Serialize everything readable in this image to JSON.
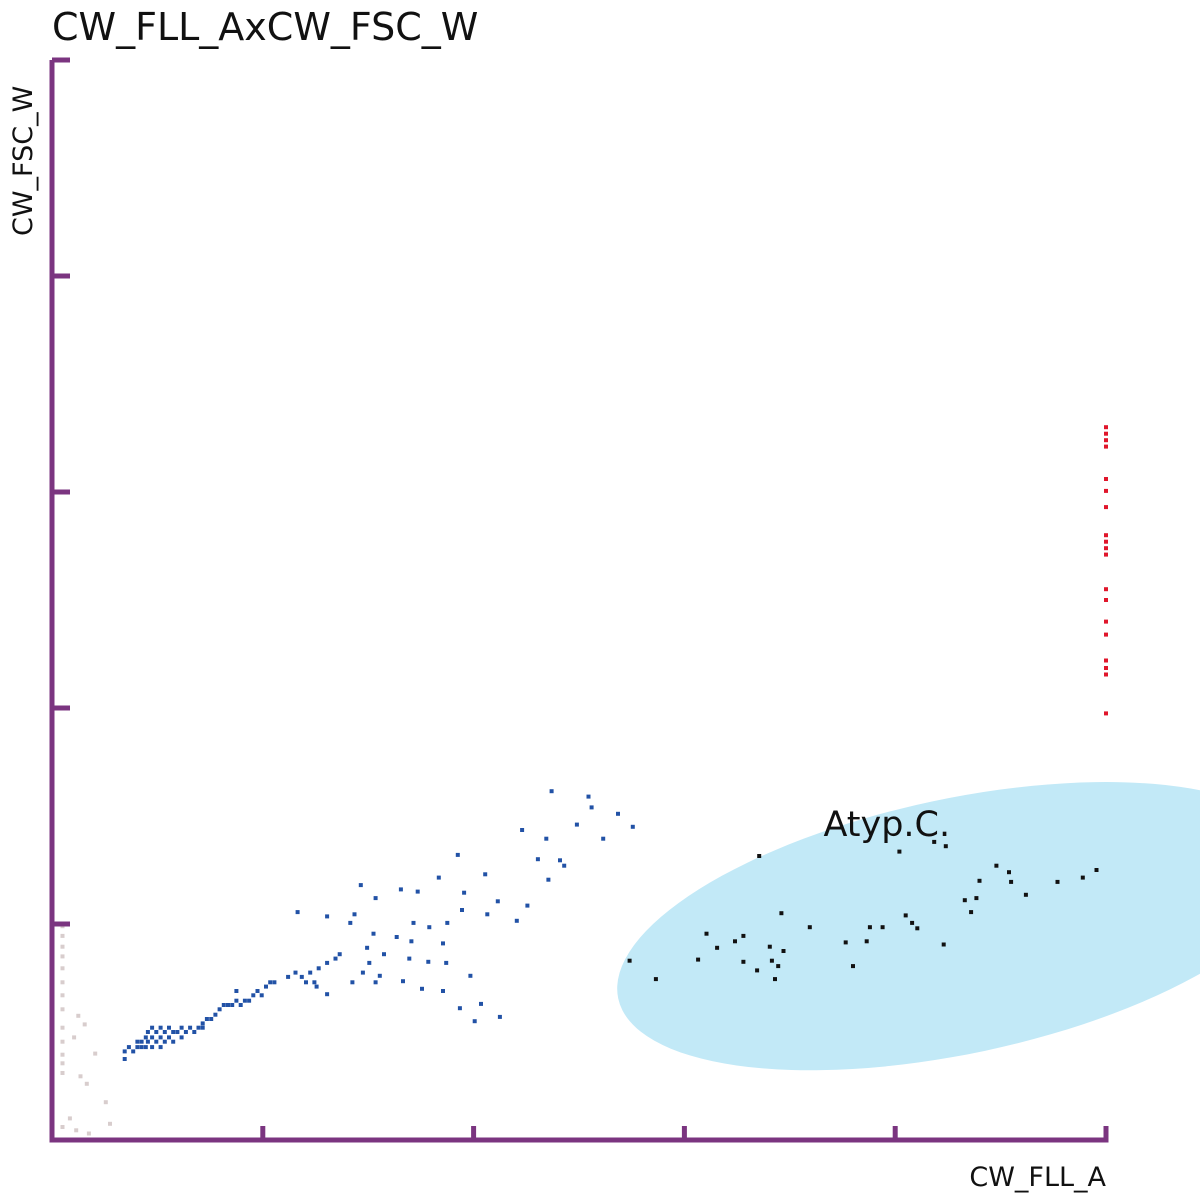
{
  "chart_data": {
    "type": "scatter",
    "title": "CW_FLL_AxCW_FSC_W",
    "xlabel": "CW_FLL_A",
    "ylabel": "CW_FSC_W",
    "xlim": [
      0,
      100
    ],
    "ylim": [
      0,
      100
    ],
    "tick_labels": "none",
    "grid": false,
    "axis_color": "#7b3580",
    "gate": {
      "label": "Atyp.C.",
      "shape": "ellipse",
      "fill": "#c2e9f7",
      "center": [
        86,
        19.8
      ],
      "radius_x": 33,
      "radius_y": 11.8,
      "rotation_deg": -12
    },
    "series": [
      {
        "color": "#2252a6",
        "points": [
          [
            6.9,
            7.5
          ],
          [
            6.9,
            8.2
          ],
          [
            7.3,
            8.6
          ],
          [
            7.7,
            8.2
          ],
          [
            8.1,
            9.1
          ],
          [
            8.1,
            8.6
          ],
          [
            8.5,
            9.1
          ],
          [
            8.5,
            8.6
          ],
          [
            8.9,
            9.5
          ],
          [
            8.9,
            8.6
          ],
          [
            9.1,
            10.0
          ],
          [
            9.1,
            9.1
          ],
          [
            9.5,
            10.4
          ],
          [
            9.5,
            9.5
          ],
          [
            9.5,
            8.6
          ],
          [
            9.9,
            10.0
          ],
          [
            9.9,
            9.1
          ],
          [
            10.3,
            10.4
          ],
          [
            10.3,
            9.5
          ],
          [
            10.3,
            8.6
          ],
          [
            10.7,
            10.0
          ],
          [
            10.7,
            9.1
          ],
          [
            11.1,
            10.4
          ],
          [
            11.1,
            9.5
          ],
          [
            11.5,
            10.0
          ],
          [
            11.5,
            9.1
          ],
          [
            11.9,
            10.0
          ],
          [
            12.3,
            10.4
          ],
          [
            12.3,
            9.5
          ],
          [
            12.7,
            10.0
          ],
          [
            13.1,
            10.4
          ],
          [
            13.5,
            10.0
          ],
          [
            13.9,
            10.4
          ],
          [
            14.3,
            10.8
          ],
          [
            14.7,
            11.2
          ],
          [
            14.3,
            10.4
          ],
          [
            15.1,
            11.2
          ],
          [
            15.5,
            11.6
          ],
          [
            15.9,
            12.1
          ],
          [
            16.3,
            12.5
          ],
          [
            16.7,
            12.5
          ],
          [
            17.1,
            12.5
          ],
          [
            17.5,
            12.9
          ],
          [
            17.9,
            12.5
          ],
          [
            18.3,
            12.9
          ],
          [
            18.7,
            12.9
          ],
          [
            17.5,
            13.8
          ],
          [
            19.1,
            13.4
          ],
          [
            19.5,
            13.8
          ],
          [
            19.9,
            13.4
          ],
          [
            20.3,
            14.2
          ],
          [
            20.7,
            14.6
          ],
          [
            21.1,
            14.6
          ],
          [
            22.4,
            15.1
          ],
          [
            23.1,
            15.5
          ],
          [
            23.7,
            15.1
          ],
          [
            24.1,
            14.6
          ],
          [
            24.5,
            15.5
          ],
          [
            24.9,
            14.6
          ],
          [
            25.3,
            15.9
          ],
          [
            26.1,
            16.4
          ],
          [
            26.9,
            16.8
          ],
          [
            27.3,
            17.2
          ],
          [
            23.3,
            21.1
          ],
          [
            25.1,
            14.2
          ],
          [
            26.1,
            13.5
          ],
          [
            28.5,
            14.6
          ],
          [
            29.5,
            15.5
          ],
          [
            30.1,
            16.4
          ],
          [
            30.7,
            14.6
          ],
          [
            28.7,
            20.9
          ],
          [
            29.3,
            23.6
          ],
          [
            33.1,
            23.2
          ],
          [
            34.3,
            20.1
          ],
          [
            34.7,
            23.0
          ],
          [
            30.5,
            19.1
          ],
          [
            37.1,
            18.2
          ],
          [
            39.1,
            22.9
          ],
          [
            42.3,
            22.1
          ],
          [
            45.1,
            21.7
          ],
          [
            38.9,
            21.3
          ],
          [
            44.1,
            20.3
          ],
          [
            37.5,
            20.1
          ],
          [
            41.3,
            20.9
          ],
          [
            32.7,
            18.8
          ],
          [
            34.1,
            18.4
          ],
          [
            28.3,
            20.1
          ],
          [
            30.7,
            22.4
          ],
          [
            26.1,
            20.7
          ],
          [
            29.9,
            17.8
          ],
          [
            31.5,
            17.2
          ],
          [
            33.9,
            16.8
          ],
          [
            35.7,
            16.5
          ],
          [
            31.1,
            15.2
          ],
          [
            33.3,
            14.7
          ],
          [
            35.1,
            14.0
          ],
          [
            39.7,
            15.2
          ],
          [
            37.1,
            13.8
          ],
          [
            40.7,
            12.6
          ],
          [
            42.5,
            11.4
          ],
          [
            38.7,
            12.2
          ],
          [
            40.1,
            11.0
          ],
          [
            47.1,
            24.1
          ],
          [
            48.6,
            25.4
          ],
          [
            52.3,
            27.9
          ],
          [
            46.1,
            26.0
          ],
          [
            46.9,
            27.9
          ],
          [
            48.2,
            25.9
          ],
          [
            49.8,
            29.2
          ],
          [
            51.2,
            30.8
          ],
          [
            53.7,
            30.2
          ],
          [
            55.1,
            29.0
          ],
          [
            50.9,
            31.8
          ],
          [
            44.6,
            28.7
          ],
          [
            47.4,
            32.3
          ],
          [
            41.1,
            24.6
          ],
          [
            38.5,
            26.4
          ],
          [
            36.7,
            24.3
          ],
          [
            35.8,
            19.7
          ],
          [
            37.4,
            16.4
          ]
        ]
      },
      {
        "color": "#111111",
        "points": [
          [
            54.8,
            16.6
          ],
          [
            57.3,
            14.9
          ],
          [
            61.3,
            16.7
          ],
          [
            62.1,
            19.1
          ],
          [
            63.1,
            17.8
          ],
          [
            64.8,
            18.4
          ],
          [
            65.6,
            18.9
          ],
          [
            65.6,
            16.5
          ],
          [
            66.9,
            15.7
          ],
          [
            68.1,
            17.9
          ],
          [
            68.3,
            16.6
          ],
          [
            68.6,
            14.9
          ],
          [
            68.9,
            16.1
          ],
          [
            69.4,
            17.5
          ],
          [
            69.2,
            21.0
          ],
          [
            71.9,
            19.7
          ],
          [
            75.3,
            18.3
          ],
          [
            77.6,
            19.7
          ],
          [
            76.0,
            16.1
          ],
          [
            77.3,
            18.4
          ],
          [
            78.8,
            19.7
          ],
          [
            81.0,
            20.8
          ],
          [
            81.6,
            20.1
          ],
          [
            82.1,
            19.6
          ],
          [
            84.6,
            18.1
          ],
          [
            87.7,
            22.4
          ],
          [
            87.2,
            21.1
          ],
          [
            88.0,
            24.0
          ],
          [
            89.6,
            25.4
          ],
          [
            90.8,
            24.8
          ],
          [
            91.0,
            23.9
          ],
          [
            92.4,
            22.7
          ],
          [
            95.4,
            23.9
          ],
          [
            97.8,
            24.3
          ],
          [
            99.1,
            25.0
          ],
          [
            84.8,
            27.2
          ],
          [
            86.6,
            22.2
          ],
          [
            83.7,
            27.6
          ],
          [
            80.4,
            26.7
          ],
          [
            67.1,
            26.3
          ]
        ]
      },
      {
        "color": "#e0162b",
        "points": [
          [
            100,
            66.0
          ],
          [
            100,
            65.4
          ],
          [
            100,
            64.8
          ],
          [
            100,
            64.2
          ],
          [
            100,
            61.2
          ],
          [
            100,
            60.1
          ],
          [
            100,
            58.6
          ],
          [
            100,
            56.0
          ],
          [
            100,
            55.4
          ],
          [
            100,
            54.8
          ],
          [
            100,
            54.2
          ],
          [
            100,
            51.0
          ],
          [
            100,
            50.0
          ],
          [
            100,
            48.0
          ],
          [
            100,
            46.8
          ],
          [
            100,
            44.4
          ],
          [
            100,
            43.7
          ],
          [
            100,
            43.1
          ],
          [
            100,
            39.5
          ]
        ]
      },
      {
        "color": "#d8cdcd",
        "points": [
          [
            1.0,
            19.8
          ],
          [
            1.0,
            18.9
          ],
          [
            1.0,
            17.9
          ],
          [
            1.0,
            17.0
          ],
          [
            1.0,
            15.9
          ],
          [
            1.0,
            14.6
          ],
          [
            1.0,
            13.4
          ],
          [
            1.0,
            12.1
          ],
          [
            1.0,
            10.4
          ],
          [
            1.0,
            9.1
          ],
          [
            1.0,
            7.9
          ],
          [
            1.0,
            7.1
          ],
          [
            1.0,
            6.2
          ],
          [
            1.0,
            1.2
          ],
          [
            1.7,
            2.0
          ],
          [
            2.3,
            0.9
          ],
          [
            3.5,
            0.6
          ],
          [
            5.5,
            1.5
          ],
          [
            5.1,
            3.5
          ],
          [
            3.3,
            5.2
          ],
          [
            2.7,
            5.9
          ],
          [
            4.1,
            8.0
          ],
          [
            2.1,
            9.5
          ],
          [
            3.1,
            10.7
          ],
          [
            2.5,
            11.5
          ]
        ]
      }
    ]
  }
}
